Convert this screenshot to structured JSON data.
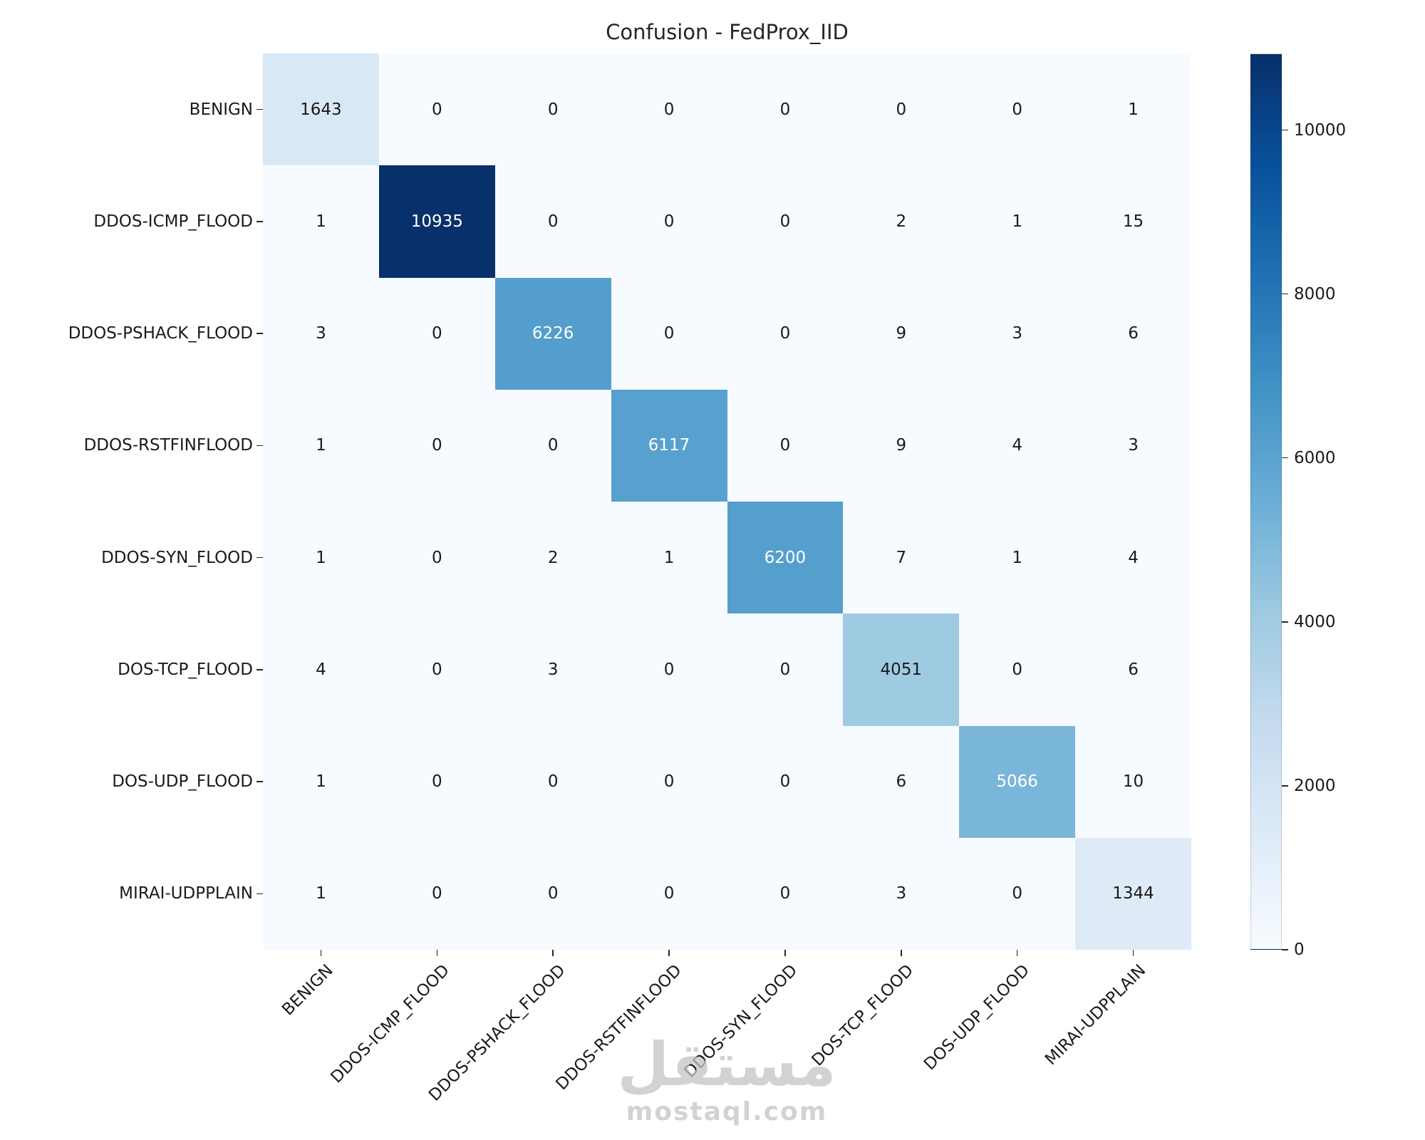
{
  "title": "Confusion - FedProx_IID",
  "chart_data": {
    "type": "heatmap",
    "title": "Confusion - FedProx_IID",
    "x_labels": [
      "BENIGN",
      "DDOS-ICMP_FLOOD",
      "DDOS-PSHACK_FLOOD",
      "DDOS-RSTFINFLOOD",
      "DDOS-SYN_FLOOD",
      "DOS-TCP_FLOOD",
      "DOS-UDP_FLOOD",
      "MIRAI-UDPPLAIN"
    ],
    "y_labels": [
      "BENIGN",
      "DDOS-ICMP_FLOOD",
      "DDOS-PSHACK_FLOOD",
      "DDOS-RSTFINFLOOD",
      "DDOS-SYN_FLOOD",
      "DOS-TCP_FLOOD",
      "DOS-UDP_FLOOD",
      "MIRAI-UDPPLAIN"
    ],
    "matrix": [
      [
        1643,
        0,
        0,
        0,
        0,
        0,
        0,
        1
      ],
      [
        1,
        10935,
        0,
        0,
        0,
        2,
        1,
        15
      ],
      [
        3,
        0,
        6226,
        0,
        0,
        9,
        3,
        6
      ],
      [
        1,
        0,
        0,
        6117,
        0,
        9,
        4,
        3
      ],
      [
        1,
        0,
        2,
        1,
        6200,
        7,
        1,
        4
      ],
      [
        4,
        0,
        3,
        0,
        0,
        4051,
        0,
        6
      ],
      [
        1,
        0,
        0,
        0,
        0,
        6,
        5066,
        10
      ],
      [
        1,
        0,
        0,
        0,
        0,
        3,
        0,
        1344
      ]
    ],
    "vmin": 0,
    "vmax": 10935,
    "colorbar_ticks": [
      0,
      2000,
      4000,
      6000,
      8000,
      10000
    ],
    "colormap": "Blues",
    "colormap_anchors": [
      {
        "pos": 0.0,
        "color": "#f7fbff"
      },
      {
        "pos": 0.125,
        "color": "#deebf7"
      },
      {
        "pos": 0.25,
        "color": "#c6dbef"
      },
      {
        "pos": 0.375,
        "color": "#9ecae1"
      },
      {
        "pos": 0.5,
        "color": "#6baed6"
      },
      {
        "pos": 0.625,
        "color": "#4292c6"
      },
      {
        "pos": 0.75,
        "color": "#2171b5"
      },
      {
        "pos": 0.875,
        "color": "#08519c"
      },
      {
        "pos": 1.0,
        "color": "#08306b"
      }
    ],
    "annotation_light_color": "#ffffff",
    "annotation_dark_color": "#1a1a1a",
    "legend_position": "right-colorbar",
    "grid": false
  },
  "watermark": {
    "line1": "مستقل",
    "line2": "mostaql.com"
  }
}
